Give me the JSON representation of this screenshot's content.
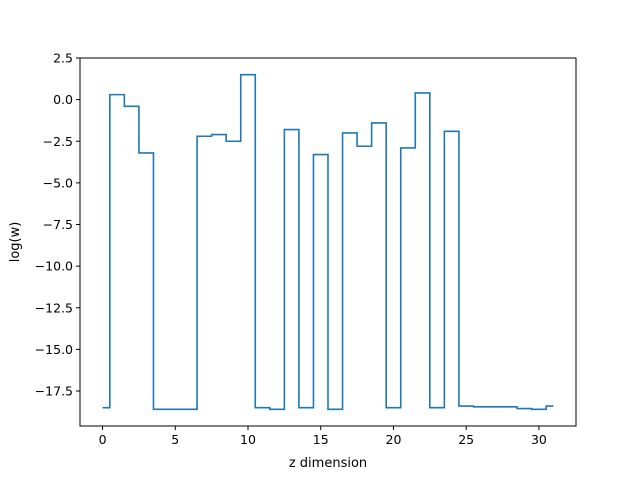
{
  "chart_data": {
    "type": "line",
    "drawstyle": "steps-mid",
    "title": "",
    "xlabel": "z dimension",
    "ylabel": "log(w)",
    "xlim": [
      -1.55,
      32.55
    ],
    "ylim": [
      -19.6,
      2.5
    ],
    "xticks": [
      0,
      5,
      10,
      15,
      20,
      25,
      30
    ],
    "xtick_labels": [
      "0",
      "5",
      "10",
      "15",
      "20",
      "25",
      "30"
    ],
    "yticks": [
      2.5,
      0.0,
      -2.5,
      -5.0,
      -7.5,
      -10.0,
      -12.5,
      -15.0,
      -17.5
    ],
    "ytick_labels": [
      "2.5",
      "0.0",
      "−2.5",
      "−5.0",
      "−7.5",
      "−10.0",
      "−12.5",
      "−15.0",
      "−17.5"
    ],
    "grid": false,
    "legend": "none",
    "color": "#1f77b4",
    "series": [
      {
        "x": [
          0,
          1,
          2,
          3,
          4,
          5,
          6,
          7,
          8,
          9,
          10,
          11,
          12,
          13,
          14,
          15,
          16,
          17,
          18,
          19,
          20,
          21,
          22,
          23,
          24,
          25,
          26,
          27,
          28,
          29,
          30,
          31
        ],
        "values": [
          -18.5,
          0.3,
          -0.4,
          -3.2,
          -18.6,
          -18.6,
          -18.6,
          -2.2,
          -2.1,
          -2.5,
          1.5,
          -18.5,
          -18.6,
          -1.8,
          -18.5,
          -3.3,
          -18.6,
          -2.0,
          -2.8,
          -1.4,
          -18.5,
          -2.9,
          0.4,
          -18.5,
          -1.9,
          -18.4,
          -18.45,
          -18.45,
          -18.45,
          -18.55,
          -18.6,
          -18.4
        ]
      }
    ]
  }
}
